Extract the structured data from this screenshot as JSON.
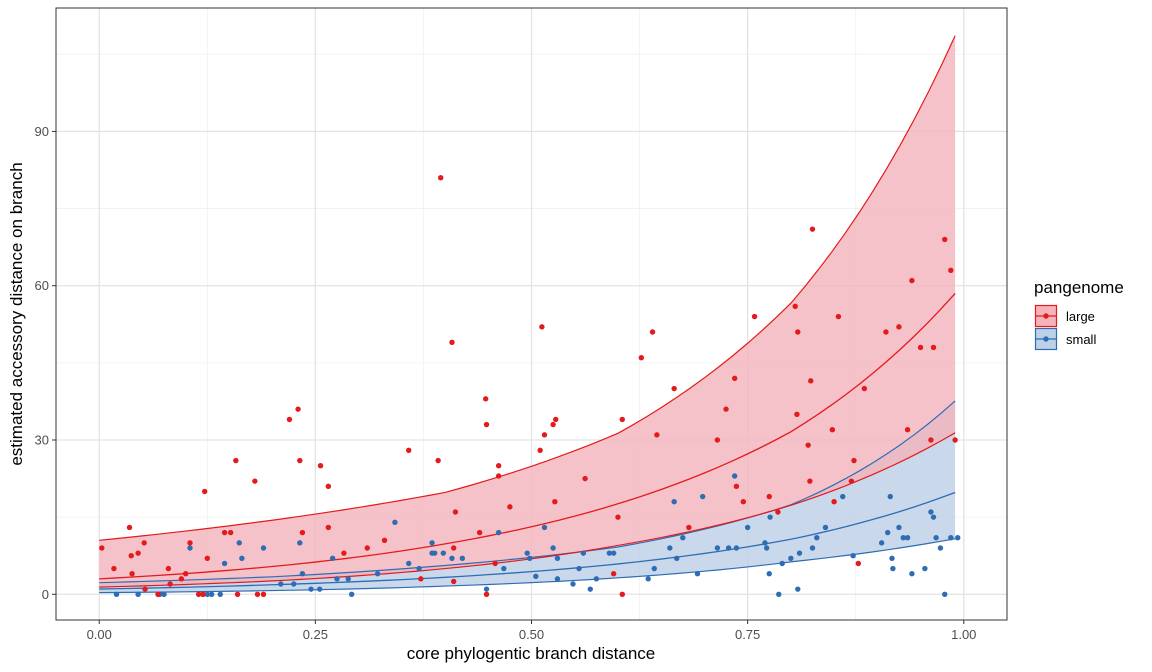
{
  "chart_data": {
    "type": "scatter",
    "title": "",
    "xlabel": "core phylogentic branch distance",
    "ylabel": "estimated accessory distance on branch",
    "xlim": [
      -0.05,
      1.05
    ],
    "ylim": [
      -5,
      114
    ],
    "x_ticks": [
      0.0,
      0.25,
      0.5,
      0.75,
      1.0
    ],
    "x_tick_labels": [
      "0.00",
      "0.25",
      "0.50",
      "0.75",
      "1.00"
    ],
    "y_ticks": [
      0,
      30,
      60,
      90
    ],
    "y_tick_labels": [
      "0",
      "30",
      "60",
      "90"
    ],
    "grid": true,
    "legend": {
      "title": "pangenome",
      "position": "right"
    },
    "series": [
      {
        "name": "large",
        "color": "#e41a1c",
        "fill": "#f4b3bb",
        "points": [
          [
            0.003,
            9.0
          ],
          [
            0.017,
            5.0
          ],
          [
            0.035,
            13.0
          ],
          [
            0.037,
            7.5
          ],
          [
            0.038,
            4.0
          ],
          [
            0.045,
            8.0
          ],
          [
            0.052,
            10.0
          ],
          [
            0.053,
            1.0
          ],
          [
            0.068,
            0.0
          ],
          [
            0.08,
            5.0
          ],
          [
            0.082,
            2.0
          ],
          [
            0.095,
            3.0
          ],
          [
            0.1,
            4.0
          ],
          [
            0.105,
            10.0
          ],
          [
            0.115,
            0.0
          ],
          [
            0.12,
            0.0
          ],
          [
            0.122,
            20.0
          ],
          [
            0.125,
            7.0
          ],
          [
            0.145,
            12.0
          ],
          [
            0.152,
            12.0
          ],
          [
            0.158,
            26.0
          ],
          [
            0.16,
            0.0
          ],
          [
            0.18,
            22.0
          ],
          [
            0.183,
            0.0
          ],
          [
            0.19,
            0.0
          ],
          [
            0.22,
            34.0
          ],
          [
            0.23,
            36.0
          ],
          [
            0.232,
            26.0
          ],
          [
            0.235,
            12.0
          ],
          [
            0.256,
            25.0
          ],
          [
            0.265,
            21.0
          ],
          [
            0.265,
            13.0
          ],
          [
            0.283,
            8.0
          ],
          [
            0.31,
            9.0
          ],
          [
            0.33,
            10.5
          ],
          [
            0.358,
            28.0
          ],
          [
            0.372,
            3.0
          ],
          [
            0.392,
            26.0
          ],
          [
            0.395,
            81.0
          ],
          [
            0.408,
            49.0
          ],
          [
            0.41,
            2.5
          ],
          [
            0.41,
            9.0
          ],
          [
            0.412,
            16.0
          ],
          [
            0.44,
            12.0
          ],
          [
            0.447,
            38.0
          ],
          [
            0.448,
            33.0
          ],
          [
            0.448,
            0.0
          ],
          [
            0.458,
            6.0
          ],
          [
            0.462,
            25.0
          ],
          [
            0.462,
            23.0
          ],
          [
            0.475,
            17.0
          ],
          [
            0.51,
            28.0
          ],
          [
            0.512,
            52.0
          ],
          [
            0.515,
            31.0
          ],
          [
            0.525,
            33.0
          ],
          [
            0.527,
            18.0
          ],
          [
            0.528,
            34.0
          ],
          [
            0.562,
            22.5
          ],
          [
            0.595,
            4.0
          ],
          [
            0.6,
            15.0
          ],
          [
            0.605,
            34.0
          ],
          [
            0.605,
            0.0
          ],
          [
            0.627,
            46.0
          ],
          [
            0.64,
            51.0
          ],
          [
            0.645,
            31.0
          ],
          [
            0.665,
            40.0
          ],
          [
            0.682,
            13.0
          ],
          [
            0.715,
            30.0
          ],
          [
            0.725,
            36.0
          ],
          [
            0.735,
            42.0
          ],
          [
            0.737,
            21.0
          ],
          [
            0.745,
            18.0
          ],
          [
            0.758,
            54.0
          ],
          [
            0.775,
            19.0
          ],
          [
            0.785,
            16.0
          ],
          [
            0.805,
            56.0
          ],
          [
            0.807,
            35.0
          ],
          [
            0.808,
            51.0
          ],
          [
            0.82,
            29.0
          ],
          [
            0.822,
            22.0
          ],
          [
            0.823,
            41.5
          ],
          [
            0.825,
            71.0
          ],
          [
            0.848,
            32.0
          ],
          [
            0.85,
            18.0
          ],
          [
            0.855,
            54.0
          ],
          [
            0.87,
            22.0
          ],
          [
            0.873,
            26.0
          ],
          [
            0.878,
            6.0
          ],
          [
            0.885,
            40.0
          ],
          [
            0.91,
            51.0
          ],
          [
            0.925,
            52.0
          ],
          [
            0.935,
            32.0
          ],
          [
            0.94,
            61.0
          ],
          [
            0.95,
            48.0
          ],
          [
            0.962,
            30.0
          ],
          [
            0.965,
            48.0
          ],
          [
            0.978,
            69.0
          ],
          [
            0.985,
            63.0
          ],
          [
            0.99,
            30.0
          ]
        ],
        "band": [
          [
            0.0,
            1.4,
            10.5
          ],
          [
            0.2,
            2.6,
            14.4
          ],
          [
            0.4,
            5.0,
            19.8
          ],
          [
            0.6,
            9.5,
            31.3
          ],
          [
            0.8,
            17.3,
            56.6
          ],
          [
            0.99,
            31.4,
            108.6
          ]
        ],
        "fit": [
          [
            0.0,
            3.0
          ],
          [
            0.2,
            5.4
          ],
          [
            0.4,
            9.8
          ],
          [
            0.6,
            17.6
          ],
          [
            0.8,
            31.6
          ],
          [
            0.99,
            58.5
          ]
        ]
      },
      {
        "name": "small",
        "color": "#2e6db4",
        "fill": "#bcd0e6",
        "points": [
          [
            0.02,
            0.0
          ],
          [
            0.045,
            0.0
          ],
          [
            0.07,
            0.0
          ],
          [
            0.075,
            0.0
          ],
          [
            0.105,
            9.0
          ],
          [
            0.12,
            0.0
          ],
          [
            0.125,
            0.0
          ],
          [
            0.13,
            0.0
          ],
          [
            0.14,
            0.0
          ],
          [
            0.145,
            6.0
          ],
          [
            0.162,
            10.0
          ],
          [
            0.165,
            7.0
          ],
          [
            0.19,
            9.0
          ],
          [
            0.21,
            2.0
          ],
          [
            0.225,
            2.0
          ],
          [
            0.232,
            10.0
          ],
          [
            0.235,
            4.0
          ],
          [
            0.245,
            1.0
          ],
          [
            0.255,
            1.0
          ],
          [
            0.27,
            7.0
          ],
          [
            0.275,
            3.0
          ],
          [
            0.288,
            3.0
          ],
          [
            0.292,
            0.0
          ],
          [
            0.322,
            4.0
          ],
          [
            0.342,
            14.0
          ],
          [
            0.358,
            6.0
          ],
          [
            0.37,
            5.0
          ],
          [
            0.385,
            8.0
          ],
          [
            0.385,
            10.0
          ],
          [
            0.388,
            8.0
          ],
          [
            0.398,
            8.0
          ],
          [
            0.408,
            7.0
          ],
          [
            0.42,
            7.0
          ],
          [
            0.448,
            1.0
          ],
          [
            0.462,
            12.0
          ],
          [
            0.468,
            5.0
          ],
          [
            0.495,
            8.0
          ],
          [
            0.498,
            7.0
          ],
          [
            0.505,
            3.5
          ],
          [
            0.515,
            13.0
          ],
          [
            0.525,
            9.0
          ],
          [
            0.53,
            7.0
          ],
          [
            0.53,
            3.0
          ],
          [
            0.548,
            2.0
          ],
          [
            0.555,
            5.0
          ],
          [
            0.56,
            8.0
          ],
          [
            0.568,
            1.0
          ],
          [
            0.575,
            3.0
          ],
          [
            0.59,
            8.0
          ],
          [
            0.595,
            8.0
          ],
          [
            0.635,
            3.0
          ],
          [
            0.642,
            5.0
          ],
          [
            0.66,
            9.0
          ],
          [
            0.665,
            18.0
          ],
          [
            0.668,
            7.0
          ],
          [
            0.675,
            11.0
          ],
          [
            0.692,
            4.0
          ],
          [
            0.698,
            19.0
          ],
          [
            0.715,
            9.0
          ],
          [
            0.728,
            9.0
          ],
          [
            0.735,
            23.0
          ],
          [
            0.737,
            9.0
          ],
          [
            0.75,
            13.0
          ],
          [
            0.77,
            10.0
          ],
          [
            0.772,
            9.0
          ],
          [
            0.775,
            4.0
          ],
          [
            0.776,
            15.0
          ],
          [
            0.786,
            0.0
          ],
          [
            0.79,
            6.0
          ],
          [
            0.8,
            7.0
          ],
          [
            0.808,
            1.0
          ],
          [
            0.81,
            8.0
          ],
          [
            0.825,
            9.0
          ],
          [
            0.83,
            11.0
          ],
          [
            0.84,
            13.0
          ],
          [
            0.86,
            19.0
          ],
          [
            0.872,
            7.5
          ],
          [
            0.905,
            10.0
          ],
          [
            0.912,
            12.0
          ],
          [
            0.915,
            19.0
          ],
          [
            0.917,
            7.0
          ],
          [
            0.918,
            5.0
          ],
          [
            0.925,
            13.0
          ],
          [
            0.93,
            11.0
          ],
          [
            0.935,
            11.0
          ],
          [
            0.94,
            4.0
          ],
          [
            0.955,
            5.0
          ],
          [
            0.962,
            16.0
          ],
          [
            0.965,
            15.0
          ],
          [
            0.968,
            11.0
          ],
          [
            0.973,
            9.0
          ],
          [
            0.978,
            0.0
          ],
          [
            0.985,
            11.0
          ],
          [
            0.993,
            11.0
          ]
        ],
        "band": [
          [
            0.0,
            0.32,
            2.25
          ],
          [
            0.2,
            0.72,
            3.4
          ],
          [
            0.4,
            1.6,
            5.6
          ],
          [
            0.6,
            3.2,
            9.2
          ],
          [
            0.8,
            6.3,
            17.4
          ],
          [
            0.99,
            10.8,
            37.6
          ]
        ],
        "fit": [
          [
            0.0,
            1.02
          ],
          [
            0.2,
            1.85
          ],
          [
            0.4,
            3.3
          ],
          [
            0.6,
            5.9
          ],
          [
            0.8,
            10.7
          ],
          [
            0.99,
            19.8
          ]
        ]
      }
    ]
  }
}
